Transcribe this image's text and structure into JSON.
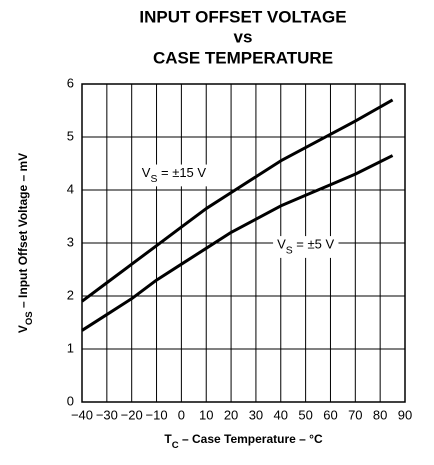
{
  "chart_data": {
    "type": "line",
    "title": [
      "INPUT OFFSET VOLTAGE",
      "vs",
      "CASE TEMPERATURE"
    ],
    "xlabel": {
      "main": "T",
      "sub": "C",
      "rest": " – Case Temperature – °C"
    },
    "ylabel": {
      "main": "V",
      "sub": "OS",
      "rest": " – Input Offset Voltage – mV"
    },
    "x": [
      -40,
      -30,
      -20,
      -10,
      0,
      10,
      20,
      30,
      40,
      50,
      60,
      70,
      85
    ],
    "series": [
      {
        "label": {
          "main": "V",
          "sub": "S",
          "rest": " = ±15 V"
        },
        "color": "#000000",
        "values": [
          1.9,
          2.25,
          2.6,
          2.95,
          3.3,
          3.65,
          3.95,
          4.25,
          4.55,
          4.8,
          5.05,
          5.3,
          5.7
        ]
      },
      {
        "label": {
          "main": "V",
          "sub": "S",
          "rest": " = ±5 V"
        },
        "color": "#000000",
        "values": [
          1.35,
          1.65,
          1.95,
          2.3,
          2.6,
          2.9,
          3.2,
          3.45,
          3.7,
          3.9,
          4.1,
          4.3,
          4.65
        ]
      }
    ],
    "xlim": [
      -40,
      90
    ],
    "xticks": [
      {
        "value": -40,
        "label": "−40"
      },
      {
        "value": -30,
        "label": "−30"
      },
      {
        "value": -20,
        "label": "−20"
      },
      {
        "value": -10,
        "label": "−10"
      },
      0,
      10,
      20,
      30,
      40,
      50,
      60,
      70,
      80,
      90
    ],
    "ylim": [
      0,
      6
    ],
    "yticks": [
      0,
      1,
      2,
      3,
      4,
      5,
      6
    ],
    "grid": true
  }
}
